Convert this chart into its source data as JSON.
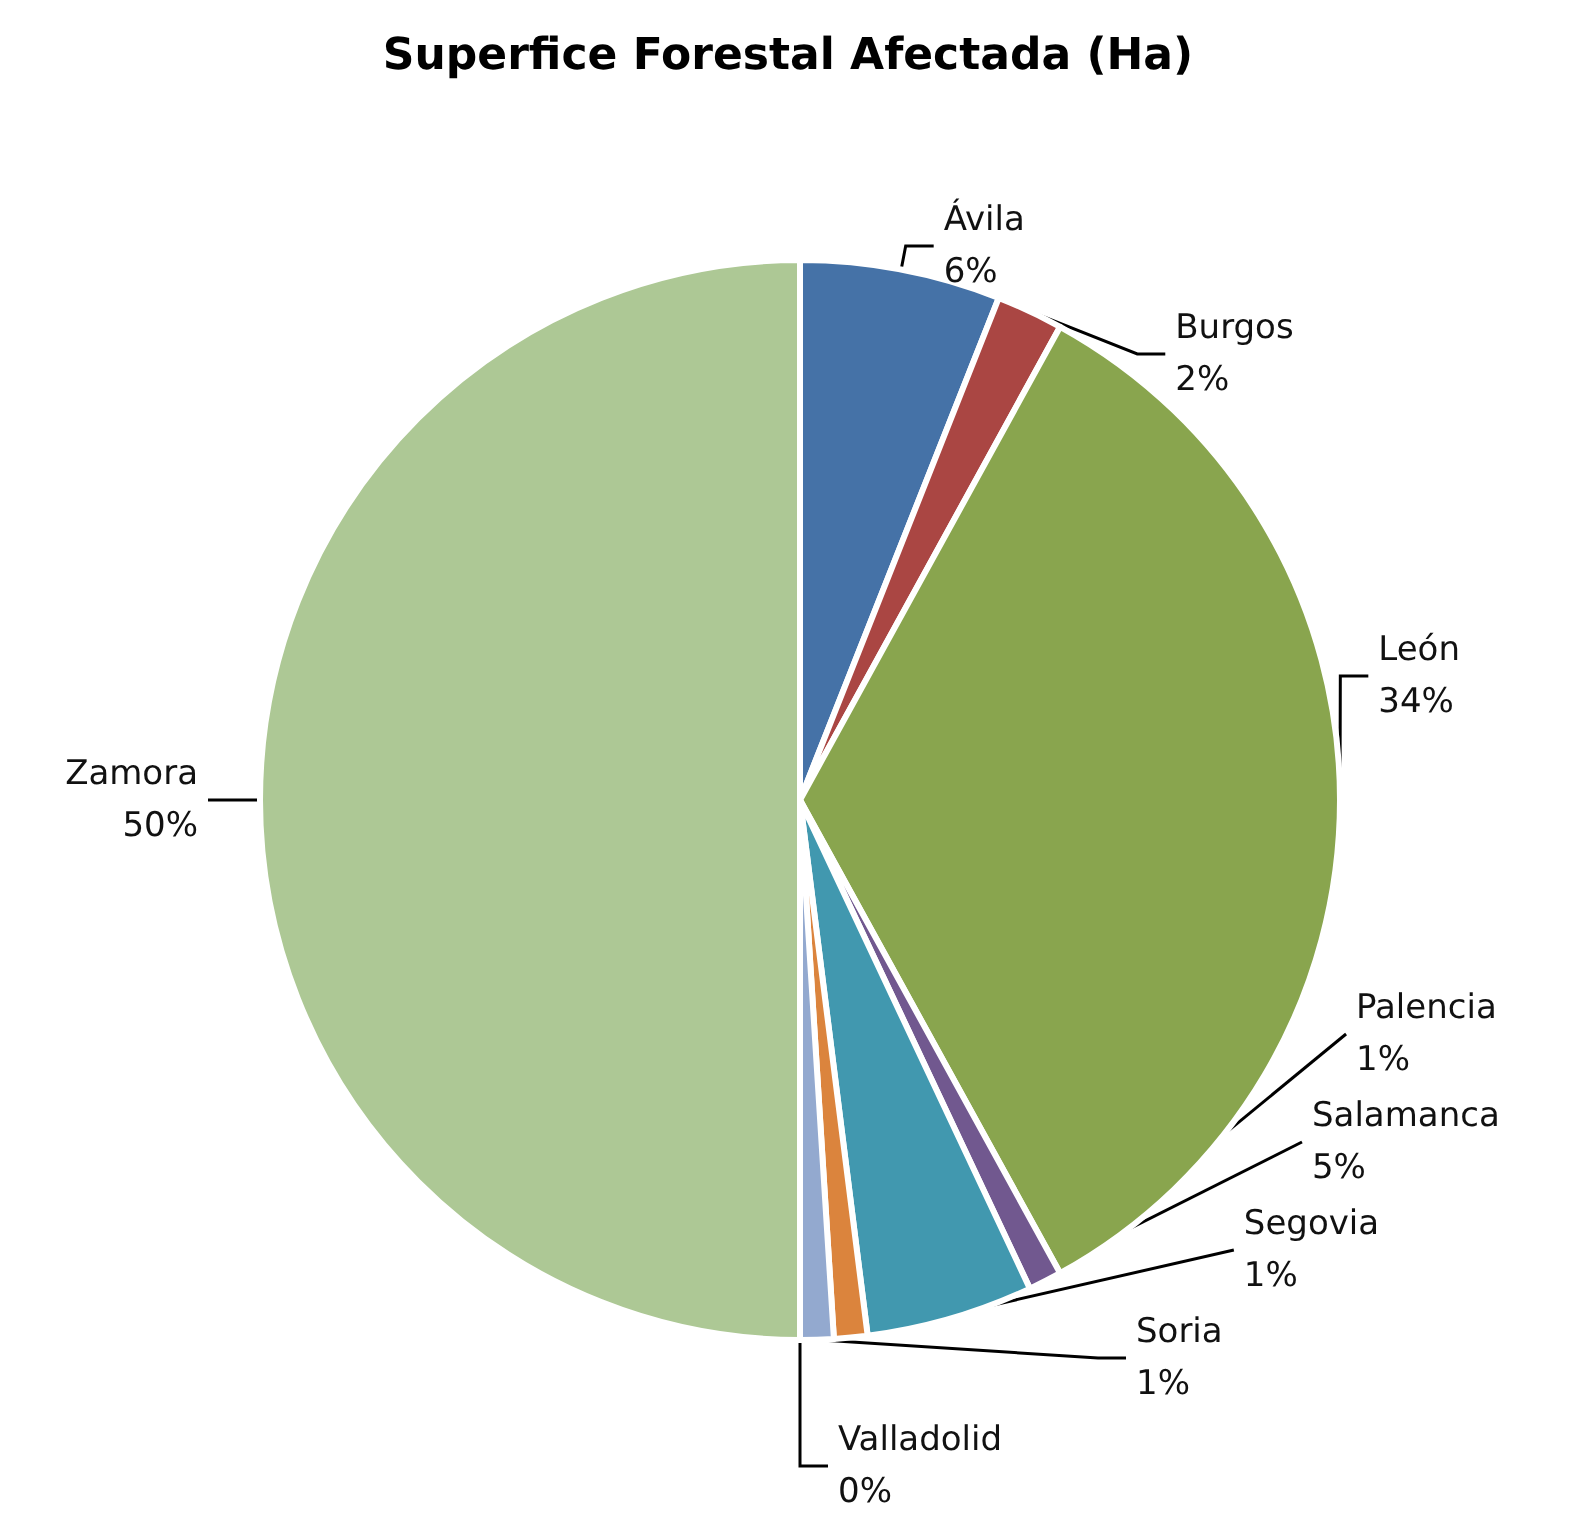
{
  "chart_data": {
    "type": "pie",
    "title": "Superfice Forestal Afectada (Ha)",
    "categories": [
      "Ávila",
      "Burgos",
      "León",
      "Palencia",
      "Salamanca",
      "Segovia",
      "Soria",
      "Valladolid",
      "Zamora"
    ],
    "values": [
      6,
      2,
      34,
      1,
      5,
      1,
      1,
      0,
      50
    ],
    "value_labels": [
      "6%",
      "2%",
      "34%",
      "1%",
      "5%",
      "1%",
      "1%",
      "0%",
      "50%"
    ],
    "colors": [
      "#4572a7",
      "#aa4643",
      "#89a54e",
      "#71588f",
      "#4198af",
      "#db843d",
      "#93a9cf",
      "#d19392",
      "#adc895"
    ]
  }
}
